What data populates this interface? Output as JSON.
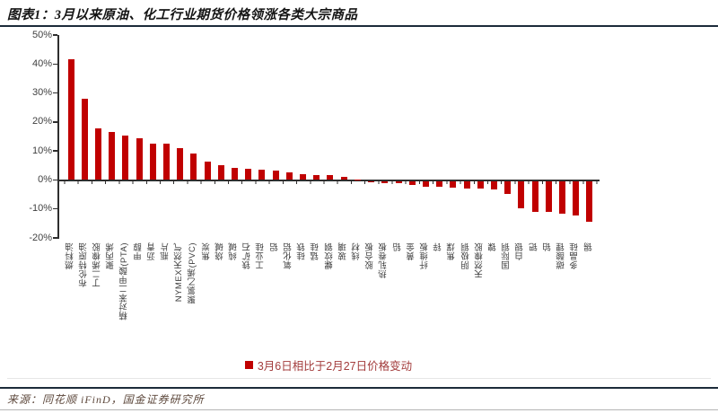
{
  "title": "图表1：3月以来原油、化工行业期货价格领涨各类大宗商品",
  "legend": {
    "label": "3月6日相比于2月27日价格变动"
  },
  "source": "来源：同花顺 iFinD，国金证券研究所",
  "colors": {
    "bar": "#c00000",
    "legend_text": "#a33c3c",
    "divider": "#1c2b3a",
    "axis": "#2e2e2e",
    "tick_label": "#3f3f3f"
  },
  "chart_data": {
    "type": "bar",
    "title": "3月以来原油、化工行业期货价格领涨各类大宗商品",
    "legend_entries": [
      "3月6日相比于2月27日价格变动"
    ],
    "axis": {
      "ymin": -20,
      "ymax": 50,
      "step": 10,
      "unit": "%"
    },
    "grid": false,
    "legend_position": "bottom",
    "categories": [
      "燃料油",
      "布伦特原油",
      "丁二烯橡胶",
      "聚丙烯",
      "精对苯二甲酸(PTA)",
      "甲醇",
      "沥青",
      "瓶片",
      "NYMEX天然气",
      "聚氯乙烯(PVC)",
      "焦炭",
      "烧碱",
      "纯碱",
      "铁矿石",
      "工业硅",
      "铝",
      "氧化铝",
      "硅铁",
      "锰硅",
      "螺纹钢",
      "玻璃",
      "线材",
      "胶合板",
      "热轧卷板",
      "铅",
      "黄金",
      "纤维板",
      "锌",
      "焦煤",
      "阴极铜",
      "天然橡胶",
      "镍",
      "国际铜",
      "白银",
      "钯",
      "铂",
      "碳酸锂",
      "多晶硅",
      "锡"
    ],
    "values": [
      41.5,
      27.9,
      17.8,
      16.6,
      15.2,
      14.4,
      12.6,
      12.4,
      11.1,
      9.2,
      6.3,
      5.1,
      4.2,
      3.7,
      3.4,
      3.2,
      2.5,
      1.9,
      1.7,
      1.6,
      1.1,
      0.2,
      -0.3,
      -0.5,
      -0.6,
      -1.0,
      -1.6,
      -1.7,
      -2.0,
      -2.3,
      -2.5,
      -2.7,
      -4.1,
      -9.3,
      -10.3,
      -10.4,
      -11.0,
      -11.7,
      -13.8
    ]
  }
}
